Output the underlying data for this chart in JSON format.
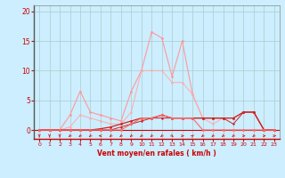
{
  "title": "",
  "xlabel": "Vent moyen/en rafales ( km/h )",
  "background_color": "#cceeff",
  "grid_color": "#aacccc",
  "xlim": [
    -0.5,
    23.5
  ],
  "ylim": [
    -1.5,
    21
  ],
  "yticks": [
    0,
    5,
    10,
    15,
    20
  ],
  "xticks": [
    0,
    1,
    2,
    3,
    4,
    5,
    6,
    7,
    8,
    9,
    10,
    11,
    12,
    13,
    14,
    15,
    16,
    17,
    18,
    19,
    20,
    21,
    22,
    23
  ],
  "series": [
    {
      "x": [
        0,
        1,
        2,
        3,
        4,
        5,
        6,
        7,
        8,
        9,
        10,
        11,
        12,
        13,
        14,
        15,
        16,
        17,
        18,
        19,
        20,
        21,
        22,
        23
      ],
      "y": [
        0,
        0,
        0,
        2.5,
        6.5,
        3,
        2.5,
        2,
        1.5,
        6.5,
        10,
        16.5,
        15.5,
        9,
        15,
        6,
        2,
        2,
        2,
        2,
        3,
        3,
        0,
        0
      ],
      "color": "#ff9999",
      "linewidth": 0.8,
      "markersize": 2.0
    },
    {
      "x": [
        0,
        1,
        2,
        3,
        4,
        5,
        6,
        7,
        8,
        9,
        10,
        11,
        12,
        13,
        14,
        15,
        16,
        17,
        18,
        19,
        20,
        21,
        22,
        23
      ],
      "y": [
        0,
        0,
        0,
        0.5,
        2.5,
        2,
        1.5,
        1,
        1,
        3,
        10,
        10,
        10,
        8,
        8,
        6,
        2,
        1,
        2,
        2,
        3,
        3,
        0,
        0
      ],
      "color": "#ffaaaa",
      "linewidth": 0.7,
      "markersize": 1.8
    },
    {
      "x": [
        0,
        1,
        2,
        3,
        4,
        5,
        6,
        7,
        8,
        9,
        10,
        11,
        12,
        13,
        14,
        15,
        16,
        17,
        18,
        19,
        20,
        21,
        22,
        23
      ],
      "y": [
        0,
        0,
        0,
        0,
        0,
        0,
        0.2,
        0.5,
        1,
        1.5,
        2,
        2,
        2.5,
        2,
        2,
        2,
        2,
        2,
        2,
        2,
        3,
        3,
        0,
        0
      ],
      "color": "#cc2222",
      "linewidth": 0.9,
      "markersize": 2.0
    },
    {
      "x": [
        0,
        1,
        2,
        3,
        4,
        5,
        6,
        7,
        8,
        9,
        10,
        11,
        12,
        13,
        14,
        15,
        16,
        17,
        18,
        19,
        20,
        21,
        22,
        23
      ],
      "y": [
        0,
        0,
        0,
        0,
        0,
        0,
        0,
        0,
        0.5,
        1,
        1.5,
        2,
        2,
        2,
        2,
        2,
        2,
        2,
        2,
        1,
        3,
        3,
        0,
        0
      ],
      "color": "#cc2222",
      "linewidth": 0.7,
      "markersize": 1.8
    },
    {
      "x": [
        0,
        1,
        2,
        3,
        4,
        5,
        6,
        7,
        8,
        9,
        10,
        11,
        12,
        13,
        14,
        15,
        16,
        17,
        18,
        19,
        20,
        21,
        22,
        23
      ],
      "y": [
        0,
        0,
        0,
        0,
        0,
        0,
        0,
        0,
        0,
        1,
        2,
        2,
        2.5,
        2,
        2,
        2,
        0,
        0,
        0,
        0,
        0,
        0,
        0,
        0
      ],
      "color": "#ff6666",
      "linewidth": 0.8,
      "markersize": 2.0
    }
  ],
  "arrow_angles": [
    180,
    180,
    180,
    225,
    225,
    225,
    270,
    225,
    225,
    225,
    225,
    225,
    225,
    135,
    90,
    45,
    225,
    225,
    225,
    225,
    90,
    225,
    90,
    90
  ],
  "arrow_color": "#cc2222"
}
